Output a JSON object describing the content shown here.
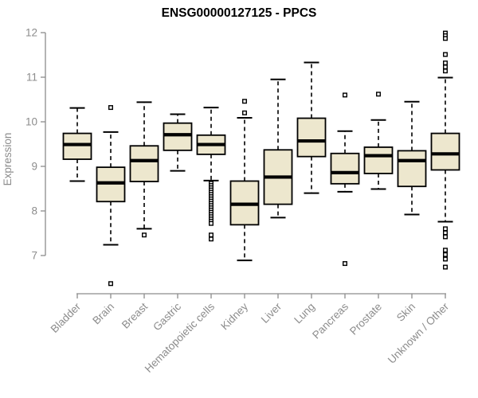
{
  "title": "ENSG00000127125 - PPCS",
  "ylabel": "Expression",
  "colors": {
    "box_fill": "#ede7ce",
    "box_stroke": "#000000",
    "median": "#000000",
    "whisker": "#000000",
    "outlier_stroke": "#000000",
    "outlier_fill": "#ffffff",
    "axis": "#8c8c8c",
    "title": "#000000",
    "background": "#ffffff"
  },
  "chart_data": {
    "type": "boxplot",
    "title": "ENSG00000127125 - PPCS",
    "ylabel": "Expression",
    "xlabel": "",
    "ylim": [
      7,
      12
    ],
    "yticks": [
      7,
      8,
      9,
      10,
      11,
      12
    ],
    "grid": false,
    "legend": "none",
    "categories": [
      "Bladder",
      "Brain",
      "Breast",
      "Gastric",
      "Hematopoietic cells",
      "Kidney",
      "Liver",
      "Lung",
      "Pancreas",
      "Prostate",
      "Skin",
      "Unknown / Other"
    ],
    "series": [
      {
        "category": "Bladder",
        "whisker_low": 8.67,
        "q1": 9.16,
        "median": 9.49,
        "q3": 9.74,
        "whisker_high": 10.31,
        "outliers": []
      },
      {
        "category": "Brain",
        "whisker_low": 7.24,
        "q1": 8.21,
        "median": 8.63,
        "q3": 8.98,
        "whisker_high": 9.77,
        "outliers": [
          10.32,
          6.37
        ]
      },
      {
        "category": "Breast",
        "whisker_low": 7.6,
        "q1": 8.66,
        "median": 9.13,
        "q3": 9.46,
        "whisker_high": 10.44,
        "outliers": [
          7.46
        ]
      },
      {
        "category": "Gastric",
        "whisker_low": 8.9,
        "q1": 9.36,
        "median": 9.71,
        "q3": 9.97,
        "whisker_high": 10.17,
        "outliers": []
      },
      {
        "category": "Hematopoietic cells",
        "whisker_low": 8.68,
        "q1": 9.27,
        "median": 9.49,
        "q3": 9.7,
        "whisker_high": 10.32,
        "outliers": [
          8.62,
          8.57,
          8.52,
          8.47,
          8.42,
          8.37,
          8.32,
          8.27,
          8.22,
          8.17,
          8.12,
          8.07,
          8.02,
          7.97,
          7.92,
          7.87,
          7.82,
          7.77,
          7.72,
          7.46,
          7.37
        ]
      },
      {
        "category": "Kidney",
        "whisker_low": 6.89,
        "q1": 7.69,
        "median": 8.15,
        "q3": 8.67,
        "whisker_high": 10.09,
        "outliers": [
          10.46,
          10.2
        ]
      },
      {
        "category": "Liver",
        "whisker_low": 7.85,
        "q1": 8.15,
        "median": 8.76,
        "q3": 9.37,
        "whisker_high": 10.95,
        "outliers": []
      },
      {
        "category": "Lung",
        "whisker_low": 8.4,
        "q1": 9.22,
        "median": 9.57,
        "q3": 10.08,
        "whisker_high": 11.33,
        "outliers": []
      },
      {
        "category": "Pancreas",
        "whisker_low": 8.43,
        "q1": 8.61,
        "median": 8.86,
        "q3": 9.29,
        "whisker_high": 9.79,
        "outliers": [
          10.6,
          6.82
        ]
      },
      {
        "category": "Prostate",
        "whisker_low": 8.49,
        "q1": 8.84,
        "median": 9.24,
        "q3": 9.43,
        "whisker_high": 10.04,
        "outliers": [
          10.62
        ]
      },
      {
        "category": "Skin",
        "whisker_low": 7.92,
        "q1": 8.55,
        "median": 9.13,
        "q3": 9.35,
        "whisker_high": 10.45,
        "outliers": []
      },
      {
        "category": "Unknown / Other",
        "whisker_low": 7.76,
        "q1": 8.92,
        "median": 9.28,
        "q3": 9.74,
        "whisker_high": 10.99,
        "outliers": [
          11.99,
          11.93,
          11.87,
          11.51,
          11.32,
          11.23,
          11.14,
          7.6,
          7.51,
          7.42,
          7.12,
          7.02,
          6.92,
          6.74
        ]
      }
    ]
  }
}
